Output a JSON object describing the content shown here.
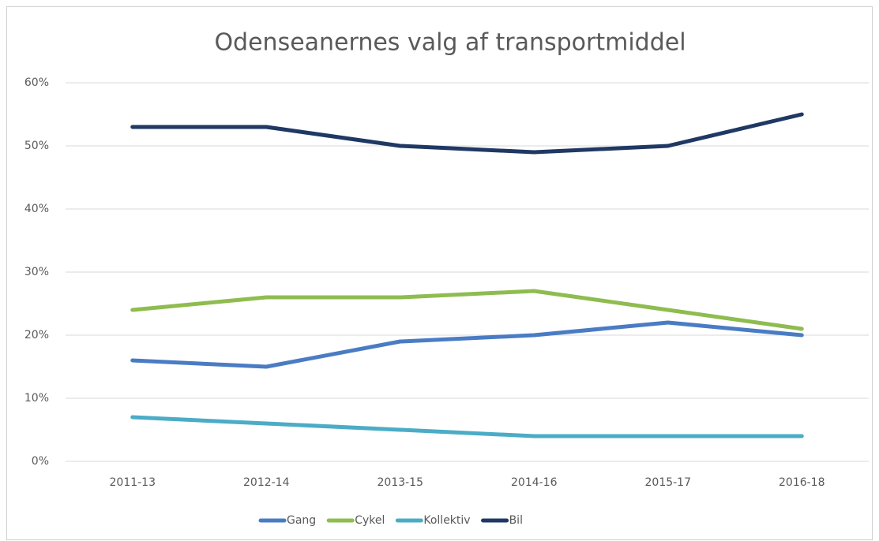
{
  "chart_data": {
    "type": "line",
    "title": "Odenseanernes valg af transportmiddel",
    "categories": [
      "2011-13",
      "2012-14",
      "2013-15",
      "2014-16",
      "2015-17",
      "2016-18"
    ],
    "series": [
      {
        "name": "Gang",
        "color": "#4a7cc4",
        "values": [
          16,
          15,
          19,
          20,
          22,
          20
        ]
      },
      {
        "name": "Cykel",
        "color": "#8fbc4f",
        "values": [
          24,
          26,
          26,
          27,
          24,
          21
        ]
      },
      {
        "name": "Kollektiv",
        "color": "#4bacc6",
        "values": [
          7,
          6,
          5,
          4,
          4,
          4
        ]
      },
      {
        "name": "Bil",
        "color": "#1f3864",
        "values": [
          53,
          53,
          50,
          49,
          50,
          55
        ]
      }
    ],
    "ylim": [
      0,
      60
    ],
    "yticks": [
      {
        "value": 0,
        "label": "0%"
      },
      {
        "value": 10,
        "label": "10%"
      },
      {
        "value": 20,
        "label": "20%"
      },
      {
        "value": 30,
        "label": "30%"
      },
      {
        "value": 40,
        "label": "40%"
      },
      {
        "value": 50,
        "label": "50%"
      },
      {
        "value": 60,
        "label": "60%"
      }
    ],
    "grid": true,
    "legend": "bottom"
  }
}
